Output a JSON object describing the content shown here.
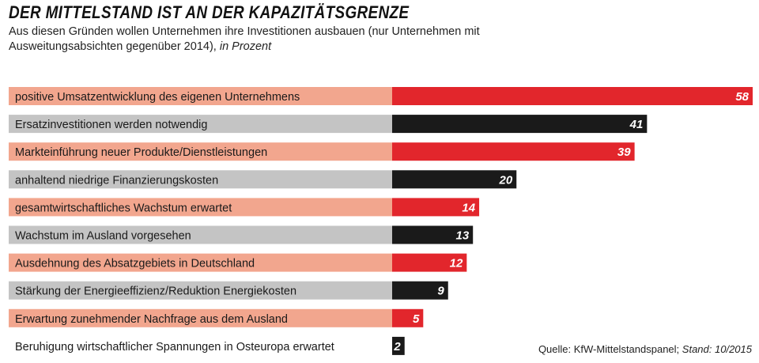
{
  "title": "DER MITTELSTAND IST AN DER KAPAZITÄTSGRENZE",
  "subtitle_main": "Aus diesen Gründen wollen Unternehmen ihre Investitionen ausbauen (nur Unternehmen mit Ausweitungsabsichten gegenüber 2014),",
  "subtitle_unit": "in Prozent",
  "source_label": "Quelle: KfW-Mittelstandspanel;",
  "source_stand": "Stand: 10/2015",
  "colors": {
    "red_bar": "#e2262c",
    "red_label_bg": "#f2a68e",
    "black_bar": "#1a1a1a",
    "grey_label_bg": "#c4c4c4",
    "value_text": "#ffffff"
  },
  "chart_data": {
    "type": "bar",
    "orientation": "horizontal",
    "title": "DER MITTELSTAND IST AN DER KAPAZITÄTSGRENZE",
    "xlabel": "",
    "ylabel": "",
    "unit": "Prozent",
    "xlim": [
      0,
      58
    ],
    "categories": [
      "positive Umsatzentwicklung des eigenen Unternehmens",
      "Ersatzinvestitionen werden notwendig",
      "Markteinführung neuer Produkte/Dienstleistungen",
      "anhaltend niedrige Finanzierungskosten",
      "gesamtwirtschaftliches Wachstum erwartet",
      "Wachstum im Ausland vorgesehen",
      "Ausdehnung des Absatzgebiets in Deutschland",
      "Stärkung der Energieeffizienz/Reduktion Energiekosten",
      "Erwartung zunehmender Nachfrage aus dem Ausland",
      "Beruhigung wirtschaftlicher Spannungen in Osteuropa erwartet"
    ],
    "values": [
      58,
      41,
      39,
      20,
      14,
      13,
      12,
      9,
      5,
      2
    ],
    "bar_colors": [
      "red",
      "black",
      "red",
      "black",
      "red",
      "black",
      "red",
      "black",
      "red",
      "black"
    ]
  }
}
